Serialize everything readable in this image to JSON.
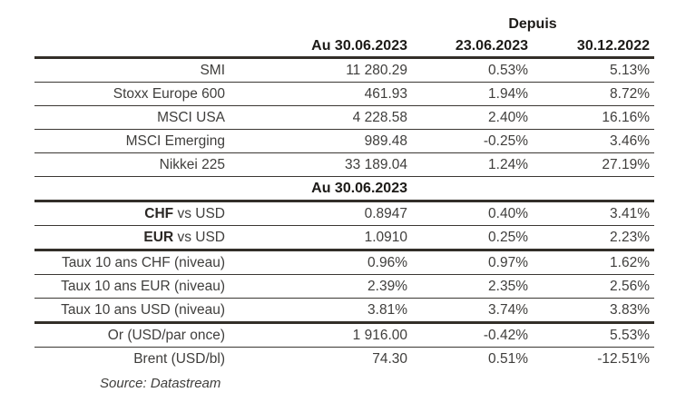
{
  "header": {
    "depuis": "Depuis",
    "date_current": "Au 30.06.2023",
    "date_change_1": "23.06.2023",
    "date_change_2": "30.12.2022"
  },
  "market_rows": [
    {
      "label": "SMI",
      "value": "11 280.29",
      "chg_23_06": "0.53%",
      "chg_30_12": "5.13%"
    },
    {
      "label": "Stoxx Europe 600",
      "value": "461.93",
      "chg_23_06": "1.94%",
      "chg_30_12": "8.72%"
    },
    {
      "label": "MSCI USA",
      "value": "4 228.58",
      "chg_23_06": "2.40%",
      "chg_30_12": "16.16%"
    },
    {
      "label": "MSCI Emerging",
      "value": "989.48",
      "chg_23_06": "-0.25%",
      "chg_30_12": "3.46%"
    },
    {
      "label": "Nikkei 225",
      "value": "33 189.04",
      "chg_23_06": "1.24%",
      "chg_30_12": "27.19%"
    }
  ],
  "section_header": {
    "date": "Au 30.06.2023"
  },
  "fx_rows": [
    {
      "label_bold": "CHF",
      "label_rest": " vs USD",
      "value": "0.8947",
      "chg_23_06": "0.40%",
      "chg_30_12": "3.41%"
    },
    {
      "label_bold": "EUR",
      "label_rest": " vs USD",
      "value": "1.0910",
      "chg_23_06": "0.25%",
      "chg_30_12": "2.23%"
    }
  ],
  "rate_rows": [
    {
      "label": "Taux 10 ans CHF (niveau)",
      "value": "0.96%",
      "chg_23_06": "0.97%",
      "chg_30_12": "1.62%"
    },
    {
      "label": "Taux 10 ans EUR (niveau)",
      "value": "2.39%",
      "chg_23_06": "2.35%",
      "chg_30_12": "2.56%"
    },
    {
      "label": "Taux 10 ans USD (niveau)",
      "value": "3.81%",
      "chg_23_06": "3.74%",
      "chg_30_12": "3.83%"
    }
  ],
  "commodity_rows": [
    {
      "label": "Or (USD/par once)",
      "value": "1 916.00",
      "chg_23_06": "-0.42%",
      "chg_30_12": "5.53%"
    },
    {
      "label": "Brent (USD/bl)",
      "value": "74.30",
      "chg_23_06": "0.51%",
      "chg_30_12": "-12.51%"
    }
  ],
  "source": "Source: Datastream",
  "colors": {
    "background": "#ffffff",
    "text": "#3f3e3c",
    "text_strong": "#1d1b18",
    "border_thick": "#332f29",
    "border_thin": "#3b3733"
  }
}
